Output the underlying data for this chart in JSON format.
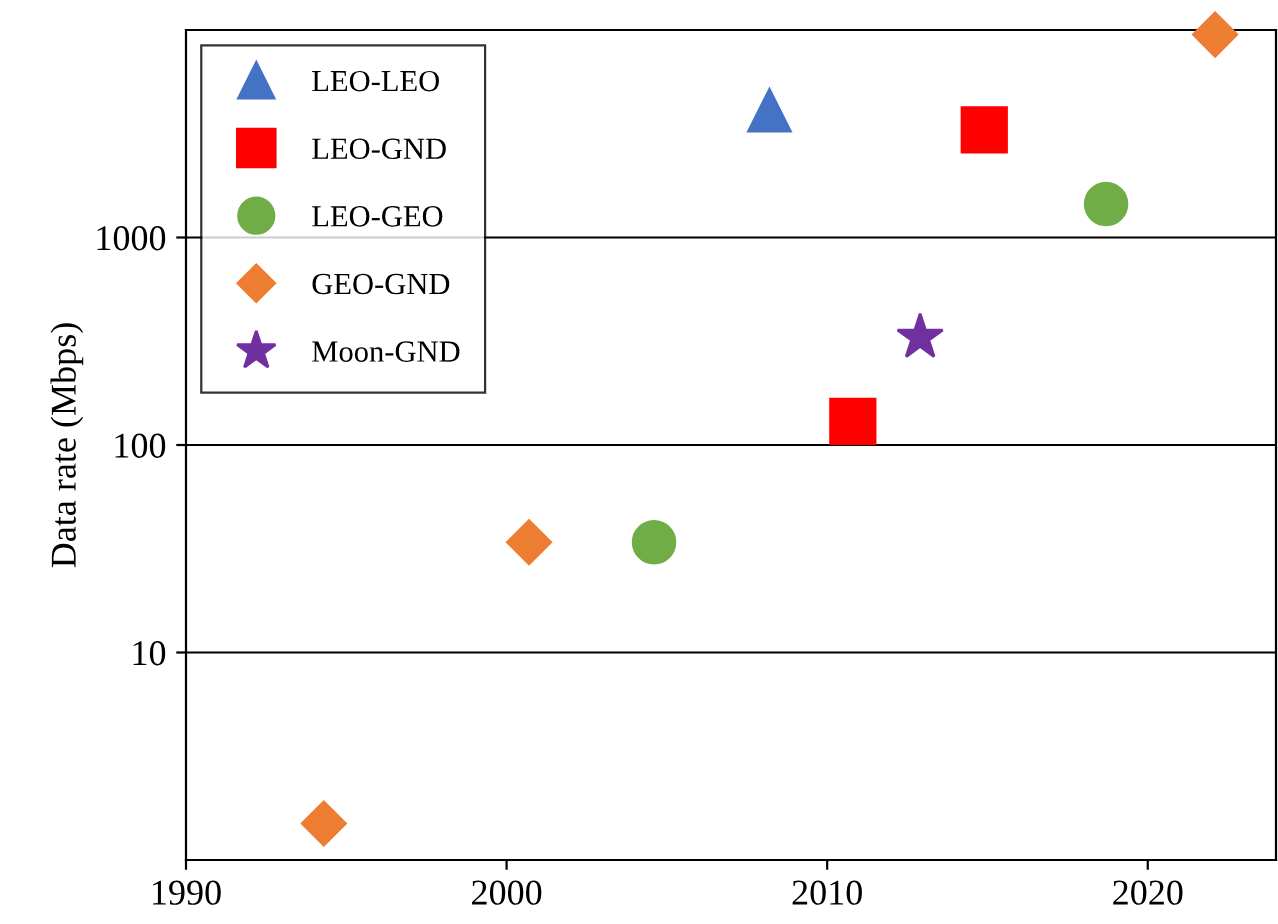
{
  "chart_data": {
    "type": "scatter",
    "ylabel": "Data rate (Mbps)",
    "log": "y",
    "xlim": [
      1990,
      2024
    ],
    "xticks": [
      1990,
      2000,
      2010,
      2020
    ],
    "ylim": [
      1,
      10000
    ],
    "yticks": [
      10,
      100,
      1000
    ],
    "grid": "y",
    "legend": "top left",
    "series": [
      {
        "name": "LEO-LEO",
        "color": "#4472c4",
        "marker": "triangle",
        "x": [
          2008.2
        ],
        "values": [
          4100
        ]
      },
      {
        "name": "LEO-GND",
        "color": "#ff0000",
        "marker": "square",
        "x": [
          2010.8,
          2014.9
        ],
        "values": [
          130,
          3300
        ]
      },
      {
        "name": "LEO-GEO",
        "color": "#70ad47",
        "marker": "circle",
        "x": [
          2004.6,
          2018.7
        ],
        "values": [
          34,
          1450
        ]
      },
      {
        "name": "GEO-GND",
        "color": "#ed7d31",
        "marker": "diamond",
        "x": [
          1994.3,
          2000.7,
          2022.1
        ],
        "values": [
          1.5,
          34,
          9500
        ]
      },
      {
        "name": "Moon-GND",
        "color": "#7030a0",
        "marker": "star",
        "x": [
          2012.9
        ],
        "values": [
          330
        ]
      }
    ]
  }
}
